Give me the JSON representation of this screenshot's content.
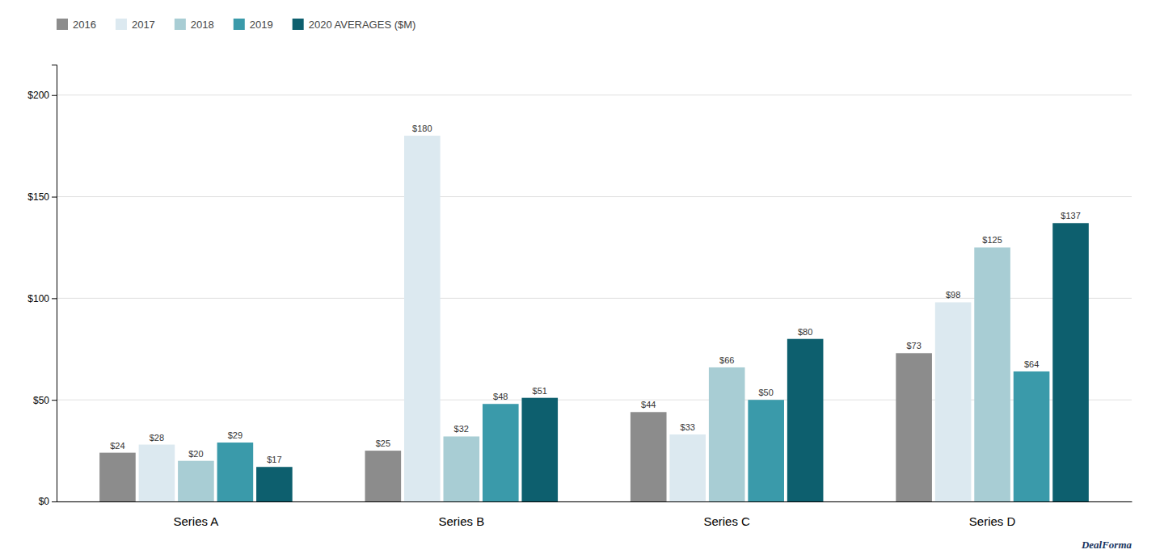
{
  "chart_data": {
    "type": "bar",
    "categories": [
      "Series A",
      "Series B",
      "Series C",
      "Series D"
    ],
    "series": [
      {
        "name": "2016",
        "color": "#8c8c8c",
        "values": [
          24,
          25,
          44,
          73
        ],
        "value_labels": [
          "$24",
          "$25",
          "$44",
          "$73"
        ]
      },
      {
        "name": "2017",
        "color": "#dce9f0",
        "values": [
          28,
          180,
          33,
          98
        ],
        "value_labels": [
          "$28",
          "$180",
          "$33",
          "$98"
        ]
      },
      {
        "name": "2018",
        "color": "#a8cdd4",
        "values": [
          20,
          32,
          66,
          125
        ],
        "value_labels": [
          "$20",
          "$32",
          "$66",
          "$125"
        ]
      },
      {
        "name": "2019",
        "color": "#3a9aaa",
        "values": [
          29,
          48,
          50,
          64
        ],
        "value_labels": [
          "$29",
          "$48",
          "$50",
          "$64"
        ]
      },
      {
        "name": "2020 AVERAGES ($M)",
        "color": "#0d5f6e",
        "values": [
          17,
          51,
          80,
          137
        ],
        "value_labels": [
          "$17",
          "$51",
          "$80",
          "$137"
        ]
      }
    ],
    "ylim": [
      0,
      215
    ],
    "yticks": [
      {
        "value": 0,
        "label": "$0"
      },
      {
        "value": 50,
        "label": "$50"
      },
      {
        "value": 100,
        "label": "$100"
      },
      {
        "value": 150,
        "label": "$150"
      },
      {
        "value": 200,
        "label": "$200"
      }
    ],
    "grid": true,
    "legend": "top-left",
    "data_labels": true,
    "annotations": [
      "DealForma"
    ]
  }
}
